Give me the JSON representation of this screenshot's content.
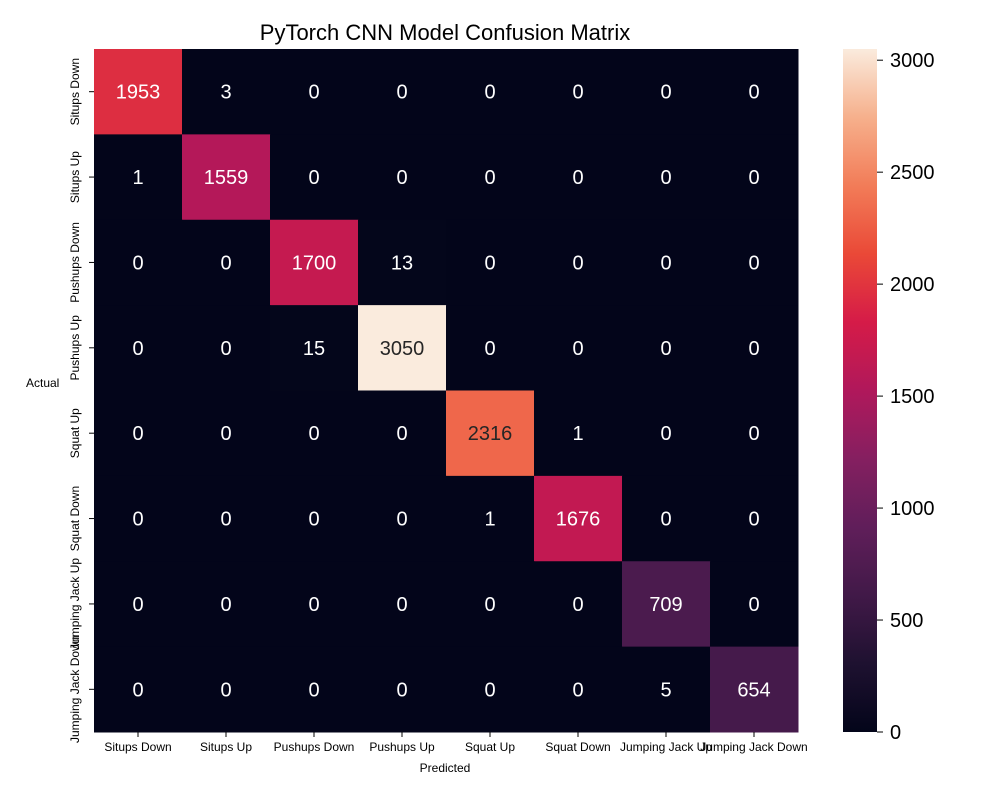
{
  "chart_data": {
    "type": "heatmap",
    "title": "PyTorch CNN Model Confusion Matrix",
    "xlabel": "Predicted",
    "ylabel": "Actual",
    "x_categories": [
      "Situps Down",
      "Situps Up",
      "Pushups Down",
      "Pushups Up",
      "Squat Up",
      "Squat Down",
      "Jumping Jack Up",
      "Jumping Jack Down"
    ],
    "y_categories": [
      "Situps Down",
      "Situps Up",
      "Pushups Down",
      "Pushups Up",
      "Squat Up",
      "Squat Down",
      "Jumping Jack Up",
      "Jumping Jack Down"
    ],
    "values": [
      [
        1953,
        3,
        0,
        0,
        0,
        0,
        0,
        0
      ],
      [
        1,
        1559,
        0,
        0,
        0,
        0,
        0,
        0
      ],
      [
        0,
        0,
        1700,
        13,
        0,
        0,
        0,
        0
      ],
      [
        0,
        0,
        15,
        3050,
        0,
        0,
        0,
        0
      ],
      [
        0,
        0,
        0,
        0,
        2316,
        1,
        0,
        0
      ],
      [
        0,
        0,
        0,
        0,
        1,
        1676,
        0,
        0
      ],
      [
        0,
        0,
        0,
        0,
        0,
        0,
        709,
        0
      ],
      [
        0,
        0,
        0,
        0,
        0,
        0,
        5,
        654
      ]
    ],
    "colorbar": {
      "min": 0,
      "max": 3050,
      "ticks": [
        0,
        500,
        1000,
        1500,
        2000,
        2500,
        3000
      ]
    },
    "colormap": "rocket"
  }
}
